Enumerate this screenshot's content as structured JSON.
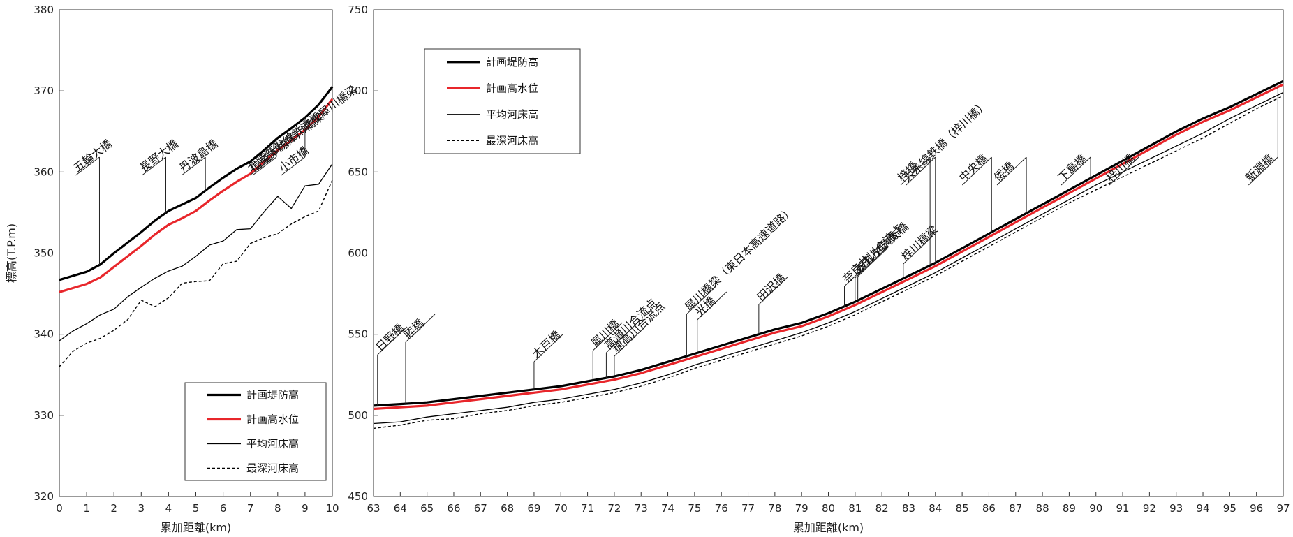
{
  "chart_data": [
    {
      "type": "line",
      "xlabel": "累加距離(km)",
      "ylabel": "標高(T.P.m)",
      "xlim": [
        0,
        10
      ],
      "ylim": [
        320,
        380
      ],
      "xticks": [
        "0",
        "1",
        "2",
        "3",
        "4",
        "5",
        "6",
        "7",
        "8",
        "9",
        "10"
      ],
      "yticks": [
        "320",
        "330",
        "340",
        "350",
        "360",
        "370",
        "380"
      ],
      "grid": false,
      "legend_position": "bottom-right",
      "x": [
        0,
        0.5,
        1,
        1.5,
        2,
        2.5,
        3,
        3.5,
        4,
        4.5,
        5,
        5.5,
        6,
        6.5,
        7,
        7.5,
        8,
        8.5,
        9,
        9.5,
        10
      ],
      "series": [
        {
          "name": "計画堤防高",
          "color": "#000000",
          "style": "bold",
          "values": [
            346.7,
            347.2,
            347.7,
            348.6,
            350.0,
            351.3,
            352.6,
            354.0,
            355.2,
            356.0,
            356.8,
            358.1,
            359.3,
            360.4,
            361.3,
            362.7,
            364.2,
            365.4,
            366.7,
            368.3,
            370.5
          ]
        },
        {
          "name": "計画高水位",
          "color": "#e8262b",
          "style": "bold",
          "values": [
            345.2,
            345.7,
            346.2,
            347.0,
            348.3,
            349.6,
            350.9,
            352.3,
            353.5,
            354.3,
            355.2,
            356.5,
            357.7,
            358.8,
            359.8,
            361.3,
            362.7,
            363.9,
            365.2,
            366.8,
            369.0
          ]
        },
        {
          "name": "平均河床高",
          "color": "#000000",
          "style": "thin",
          "values": [
            339.2,
            340.4,
            341.3,
            342.4,
            343.1,
            344.6,
            345.8,
            346.9,
            347.8,
            348.4,
            349.6,
            351.0,
            351.5,
            352.9,
            353.0,
            355.1,
            357.0,
            355.5,
            358.3,
            358.5,
            361.0
          ]
        },
        {
          "name": "最深河床高",
          "color": "#000000",
          "style": "dotted",
          "values": [
            336.0,
            337.9,
            338.9,
            339.5,
            340.5,
            341.8,
            344.2,
            343.4,
            344.5,
            346.3,
            346.5,
            346.6,
            348.7,
            349.0,
            351.2,
            351.9,
            352.4,
            353.6,
            354.5,
            355.2,
            359.0
          ]
        }
      ],
      "annotations": [
        {
          "text": "五輪大橋",
          "x": 1.47
        },
        {
          "text": "長野大橋",
          "x": 3.9
        },
        {
          "text": "丹波島橋",
          "x": 5.35
        },
        {
          "text": "北陸新幹線鉄道橋犀川橋梁",
          "x": 7.85
        },
        {
          "text": "信越本線犀川橋梁",
          "x": 7.95
        },
        {
          "text": "小市橋",
          "x": 9.0
        }
      ]
    },
    {
      "type": "line",
      "xlabel": "累加距離(km)",
      "ylabel": "",
      "xlim": [
        63,
        97
      ],
      "ylim": [
        450,
        750
      ],
      "xticks": [
        "63",
        "64",
        "65",
        "66",
        "67",
        "68",
        "69",
        "70",
        "71",
        "72",
        "73",
        "74",
        "75",
        "76",
        "77",
        "78",
        "79",
        "80",
        "81",
        "82",
        "83",
        "84",
        "85",
        "86",
        "87",
        "88",
        "89",
        "90",
        "91",
        "92",
        "93",
        "94",
        "95",
        "96",
        "97"
      ],
      "yticks": [
        "450",
        "500",
        "550",
        "600",
        "650",
        "700",
        "750"
      ],
      "grid": false,
      "legend_position": "top-left",
      "x": [
        63,
        64,
        65,
        66,
        67,
        68,
        69,
        70,
        71,
        72,
        73,
        74,
        75,
        76,
        77,
        78,
        79,
        80,
        81,
        82,
        83,
        84,
        85,
        86,
        87,
        88,
        89,
        90,
        91,
        92,
        93,
        94,
        95,
        96,
        97
      ],
      "series": [
        {
          "name": "計画堤防高",
          "color": "#000000",
          "style": "bold",
          "values": [
            506,
            507,
            508,
            510,
            512,
            514,
            516,
            518,
            521,
            524,
            528,
            533,
            538,
            543,
            548,
            553,
            557,
            563,
            570,
            578,
            586,
            594,
            603,
            612,
            621,
            630,
            639,
            648,
            657,
            666,
            675,
            683,
            690,
            698,
            706
          ]
        },
        {
          "name": "計画高水位",
          "color": "#e8262b",
          "style": "bold",
          "values": [
            504,
            505,
            506,
            508,
            510,
            512,
            514,
            516,
            519,
            522,
            526,
            531,
            536,
            541,
            546,
            551,
            555,
            561,
            568,
            576,
            584,
            592,
            601,
            610,
            619,
            628,
            637,
            646,
            655,
            664,
            673,
            681,
            688,
            696,
            704
          ]
        },
        {
          "name": "平均河床高",
          "color": "#000000",
          "style": "thin",
          "values": [
            495,
            496,
            499,
            501,
            503,
            505,
            508,
            510,
            513,
            516,
            520,
            525,
            531,
            536,
            541,
            546,
            551,
            557,
            564,
            572,
            580,
            588,
            597,
            606,
            615,
            624,
            633,
            642,
            650,
            658,
            666,
            674,
            683,
            691,
            699
          ]
        },
        {
          "name": "最深河床高",
          "color": "#000000",
          "style": "dotted",
          "values": [
            492,
            494,
            497,
            498,
            501,
            503,
            506,
            508,
            511,
            514,
            518,
            523,
            529,
            534,
            539,
            544,
            549,
            555,
            562,
            570,
            578,
            586,
            595,
            604,
            613,
            622,
            631,
            639,
            647,
            655,
            663,
            671,
            680,
            689,
            697
          ]
        }
      ],
      "annotations": [
        {
          "text": "日野橋",
          "x": 63.15
        },
        {
          "text": "睦橋",
          "x": 64.2
        },
        {
          "text": "木戸橋",
          "x": 69.0
        },
        {
          "text": "犀川橋",
          "x": 71.2
        },
        {
          "text": "高瀬川合流点",
          "x": 71.7
        },
        {
          "text": "穂高川合流点",
          "x": 72.0
        },
        {
          "text": "犀川橋梁（東日本高速道路）",
          "x": 74.7
        },
        {
          "text": "光橋",
          "x": 75.1
        },
        {
          "text": "田沢橋",
          "x": 77.4
        },
        {
          "text": "奈良井川合流点",
          "x": 80.6
        },
        {
          "text": "あずみ野橋",
          "x": 81.0
        },
        {
          "text": "アルプス大橋",
          "x": 81.1
        },
        {
          "text": "梓川橋梁",
          "x": 82.8
        },
        {
          "text": "梓橋",
          "x": 83.8
        },
        {
          "text": "大糸線鉄橋（梓川橋）",
          "x": 84.0
        },
        {
          "text": "中央橋",
          "x": 86.1
        },
        {
          "text": "倭橋",
          "x": 87.4
        },
        {
          "text": "下島橋",
          "x": 89.8
        },
        {
          "text": "梓川橋",
          "x": 91.6
        },
        {
          "text": "新淵橋",
          "x": 96.8
        }
      ]
    }
  ]
}
